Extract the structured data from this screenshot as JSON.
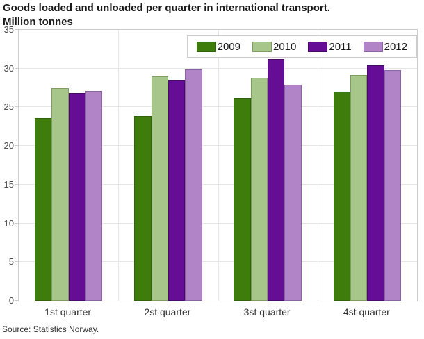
{
  "title_line1": "Goods loaded and unloaded per quarter in international transport.",
  "title_line2": "Million tonnes",
  "source": "Source: Statistics Norway.",
  "chart_data": {
    "type": "bar",
    "title": "Goods loaded and unloaded per quarter in international transport. Million tonnes",
    "xlabel": "",
    "ylabel": "Million tonnes",
    "categories": [
      "1st quarter",
      "2st quarter",
      "3st quarter",
      "4st quarter"
    ],
    "series": [
      {
        "name": "2009",
        "color": "#3e7d0c",
        "border_color": "#2f6309",
        "values": [
          23.6,
          23.9,
          26.2,
          27.0
        ]
      },
      {
        "name": "2010",
        "color": "#a6c789",
        "border_color": "#7d9c5e",
        "values": [
          27.5,
          29.0,
          28.8,
          29.2
        ]
      },
      {
        "name": "2011",
        "color": "#650d95",
        "border_color": "#470968",
        "values": [
          26.8,
          28.5,
          31.2,
          30.4
        ]
      },
      {
        "name": "2012",
        "color": "#b184c8",
        "border_color": "#8a63a3",
        "values": [
          27.1,
          29.9,
          27.9,
          29.8
        ]
      }
    ],
    "ylim": [
      0,
      35
    ],
    "yticks": [
      0,
      5,
      10,
      15,
      20,
      25,
      30,
      35
    ],
    "grid": true,
    "legend_position": "top-right",
    "gridline_color": "#e6e6e6",
    "axis_border_color": "#cccccc"
  }
}
